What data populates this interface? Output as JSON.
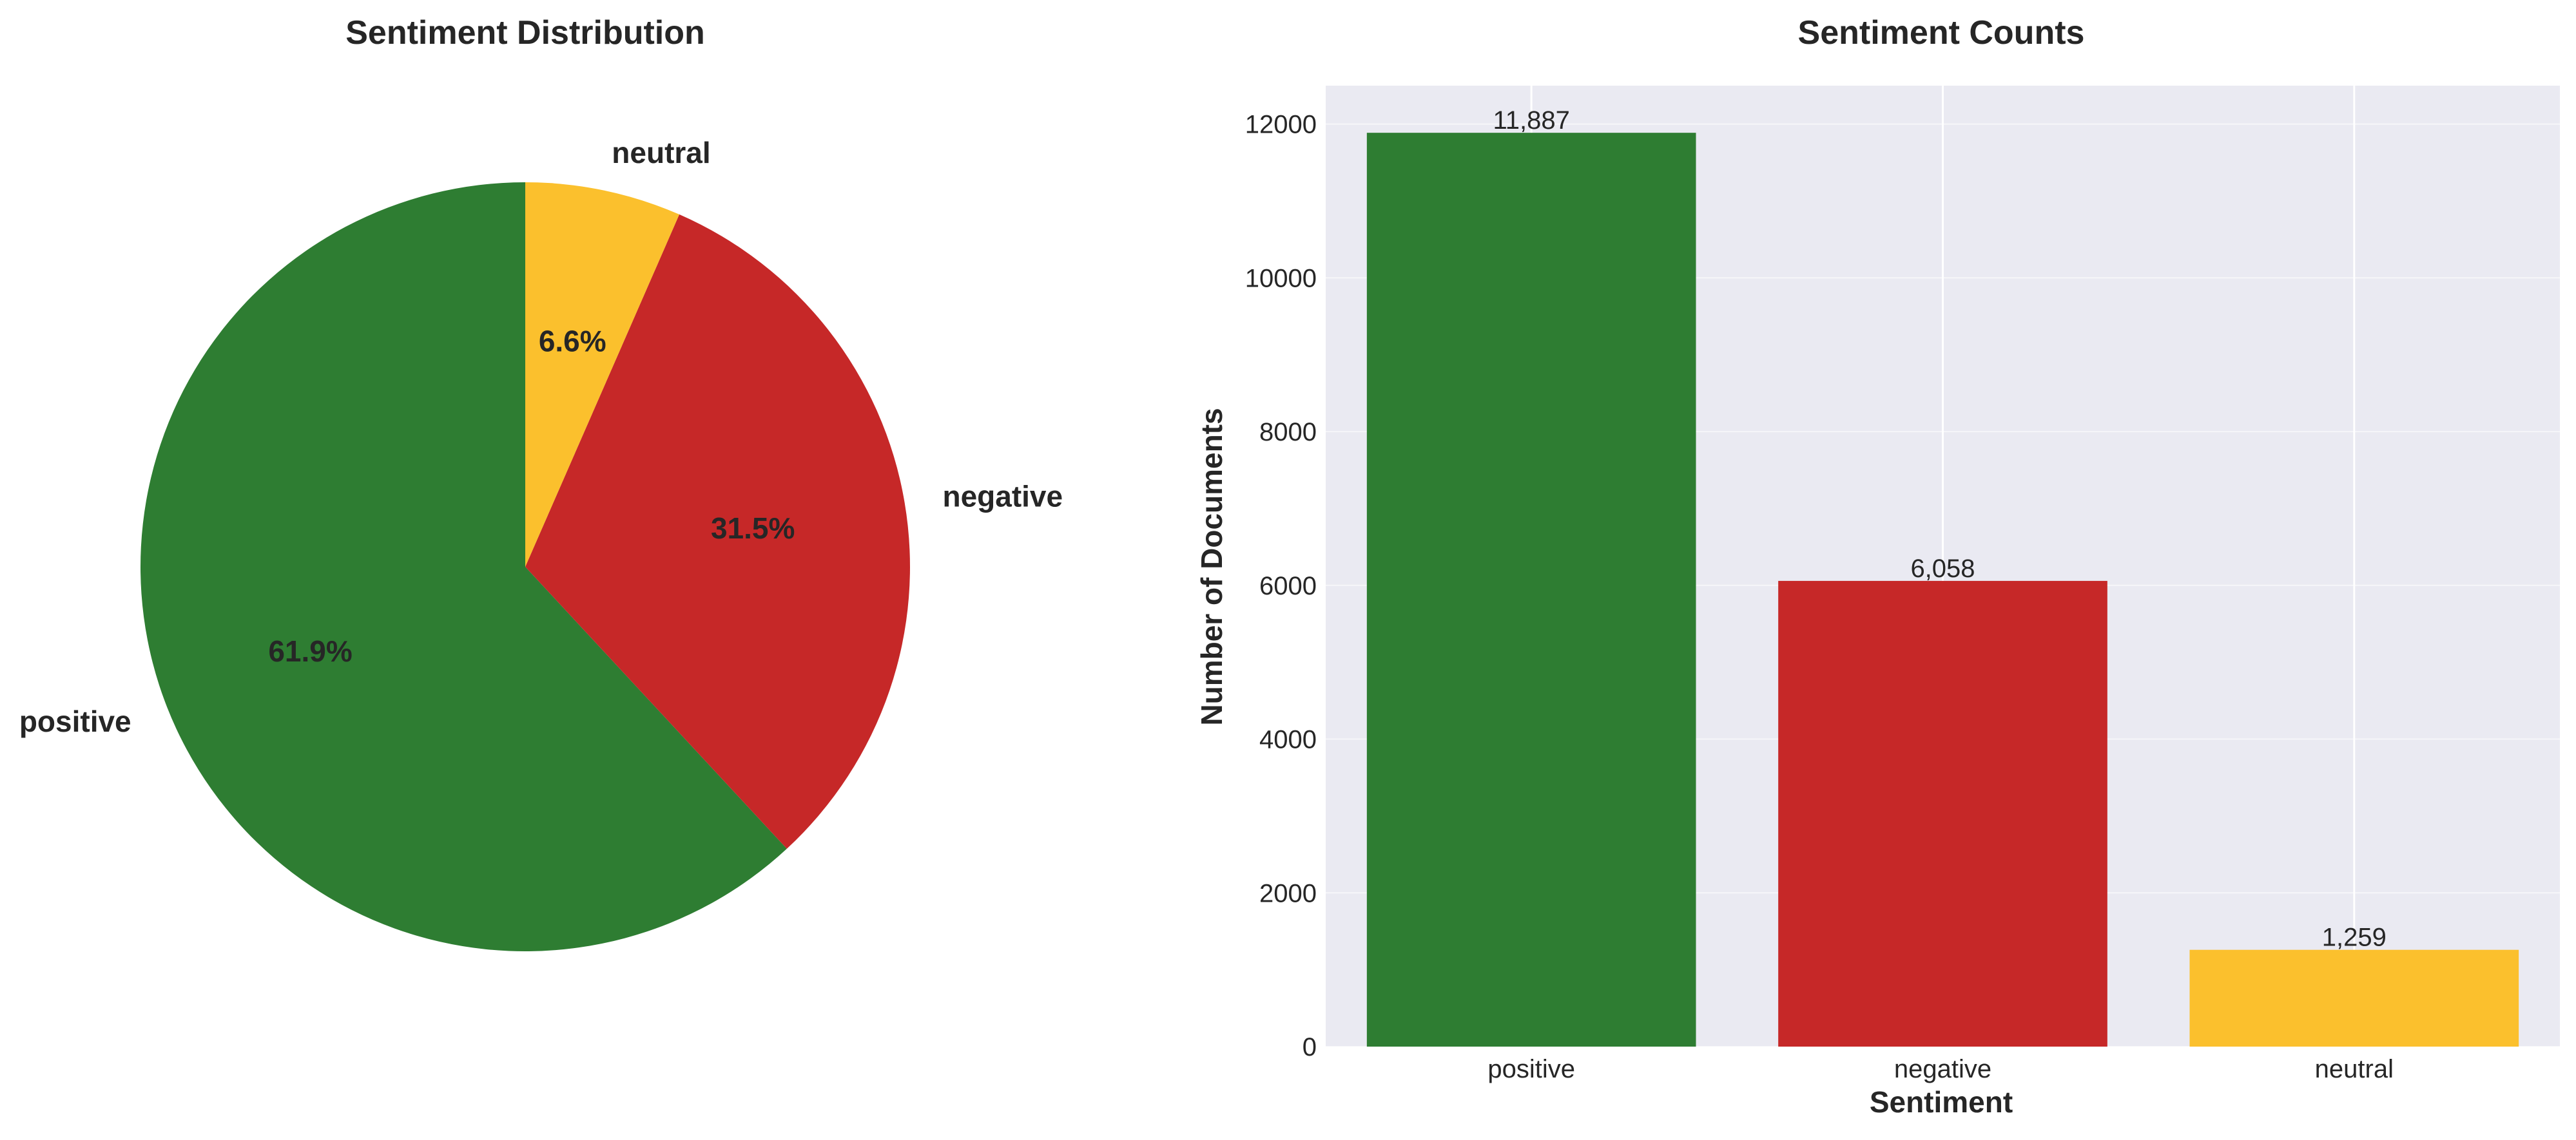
{
  "chart_data": [
    {
      "type": "pie",
      "title": "Sentiment Distribution",
      "labels": [
        "positive",
        "negative",
        "neutral"
      ],
      "values": [
        11887,
        6058,
        1259
      ],
      "percent_labels": [
        "61.9%",
        "31.5%",
        "6.6%"
      ],
      "colors": [
        "#2e7d32",
        "#c62828",
        "#fbc02d"
      ],
      "start_angle": "top, counter-clockwise"
    },
    {
      "type": "bar",
      "title": "Sentiment Counts",
      "categories": [
        "positive",
        "negative",
        "neutral"
      ],
      "values": [
        11887,
        6058,
        1259
      ],
      "value_labels": [
        "11,887",
        "6,058",
        "1,259"
      ],
      "colors": [
        "#2e7d32",
        "#c62828",
        "#fbc02d"
      ],
      "xlabel": "Sentiment",
      "ylabel": "Number of Documents",
      "ylim": [
        0,
        12500
      ],
      "yticks": [
        0,
        2000,
        4000,
        6000,
        8000,
        10000,
        12000
      ],
      "grid": true,
      "background": "#eaeaf2"
    }
  ]
}
